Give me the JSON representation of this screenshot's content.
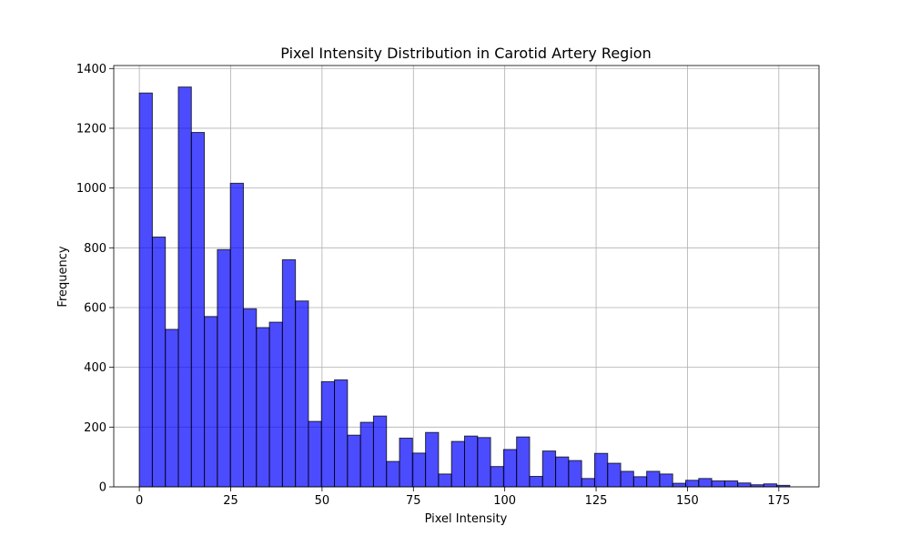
{
  "chart_data": {
    "type": "bar",
    "title": "Pixel Intensity Distribution in Carotid Artery Region",
    "xlabel": "Pixel Intensity",
    "ylabel": "Frequency",
    "xlim": [
      -7,
      186
    ],
    "ylim": [
      0,
      1410
    ],
    "x_ticks": [
      0,
      25,
      50,
      75,
      100,
      125,
      150,
      175
    ],
    "y_ticks": [
      0,
      200,
      400,
      600,
      800,
      1000,
      1200,
      1400
    ],
    "grid": true,
    "bar_color": "#0000ff",
    "bar_alpha": 0.7,
    "bin_width": 3.56,
    "bins_start": 0,
    "values": [
      1318,
      836,
      527,
      1338,
      1186,
      570,
      794,
      1016,
      596,
      533,
      551,
      760,
      622,
      219,
      352,
      358,
      173,
      216,
      237,
      85,
      163,
      113,
      182,
      43,
      152,
      170,
      165,
      68,
      125,
      167,
      35,
      120,
      100,
      88,
      28,
      112,
      79,
      52,
      34,
      52,
      43,
      12,
      22,
      28,
      20,
      20,
      13,
      7,
      10,
      5
    ]
  }
}
